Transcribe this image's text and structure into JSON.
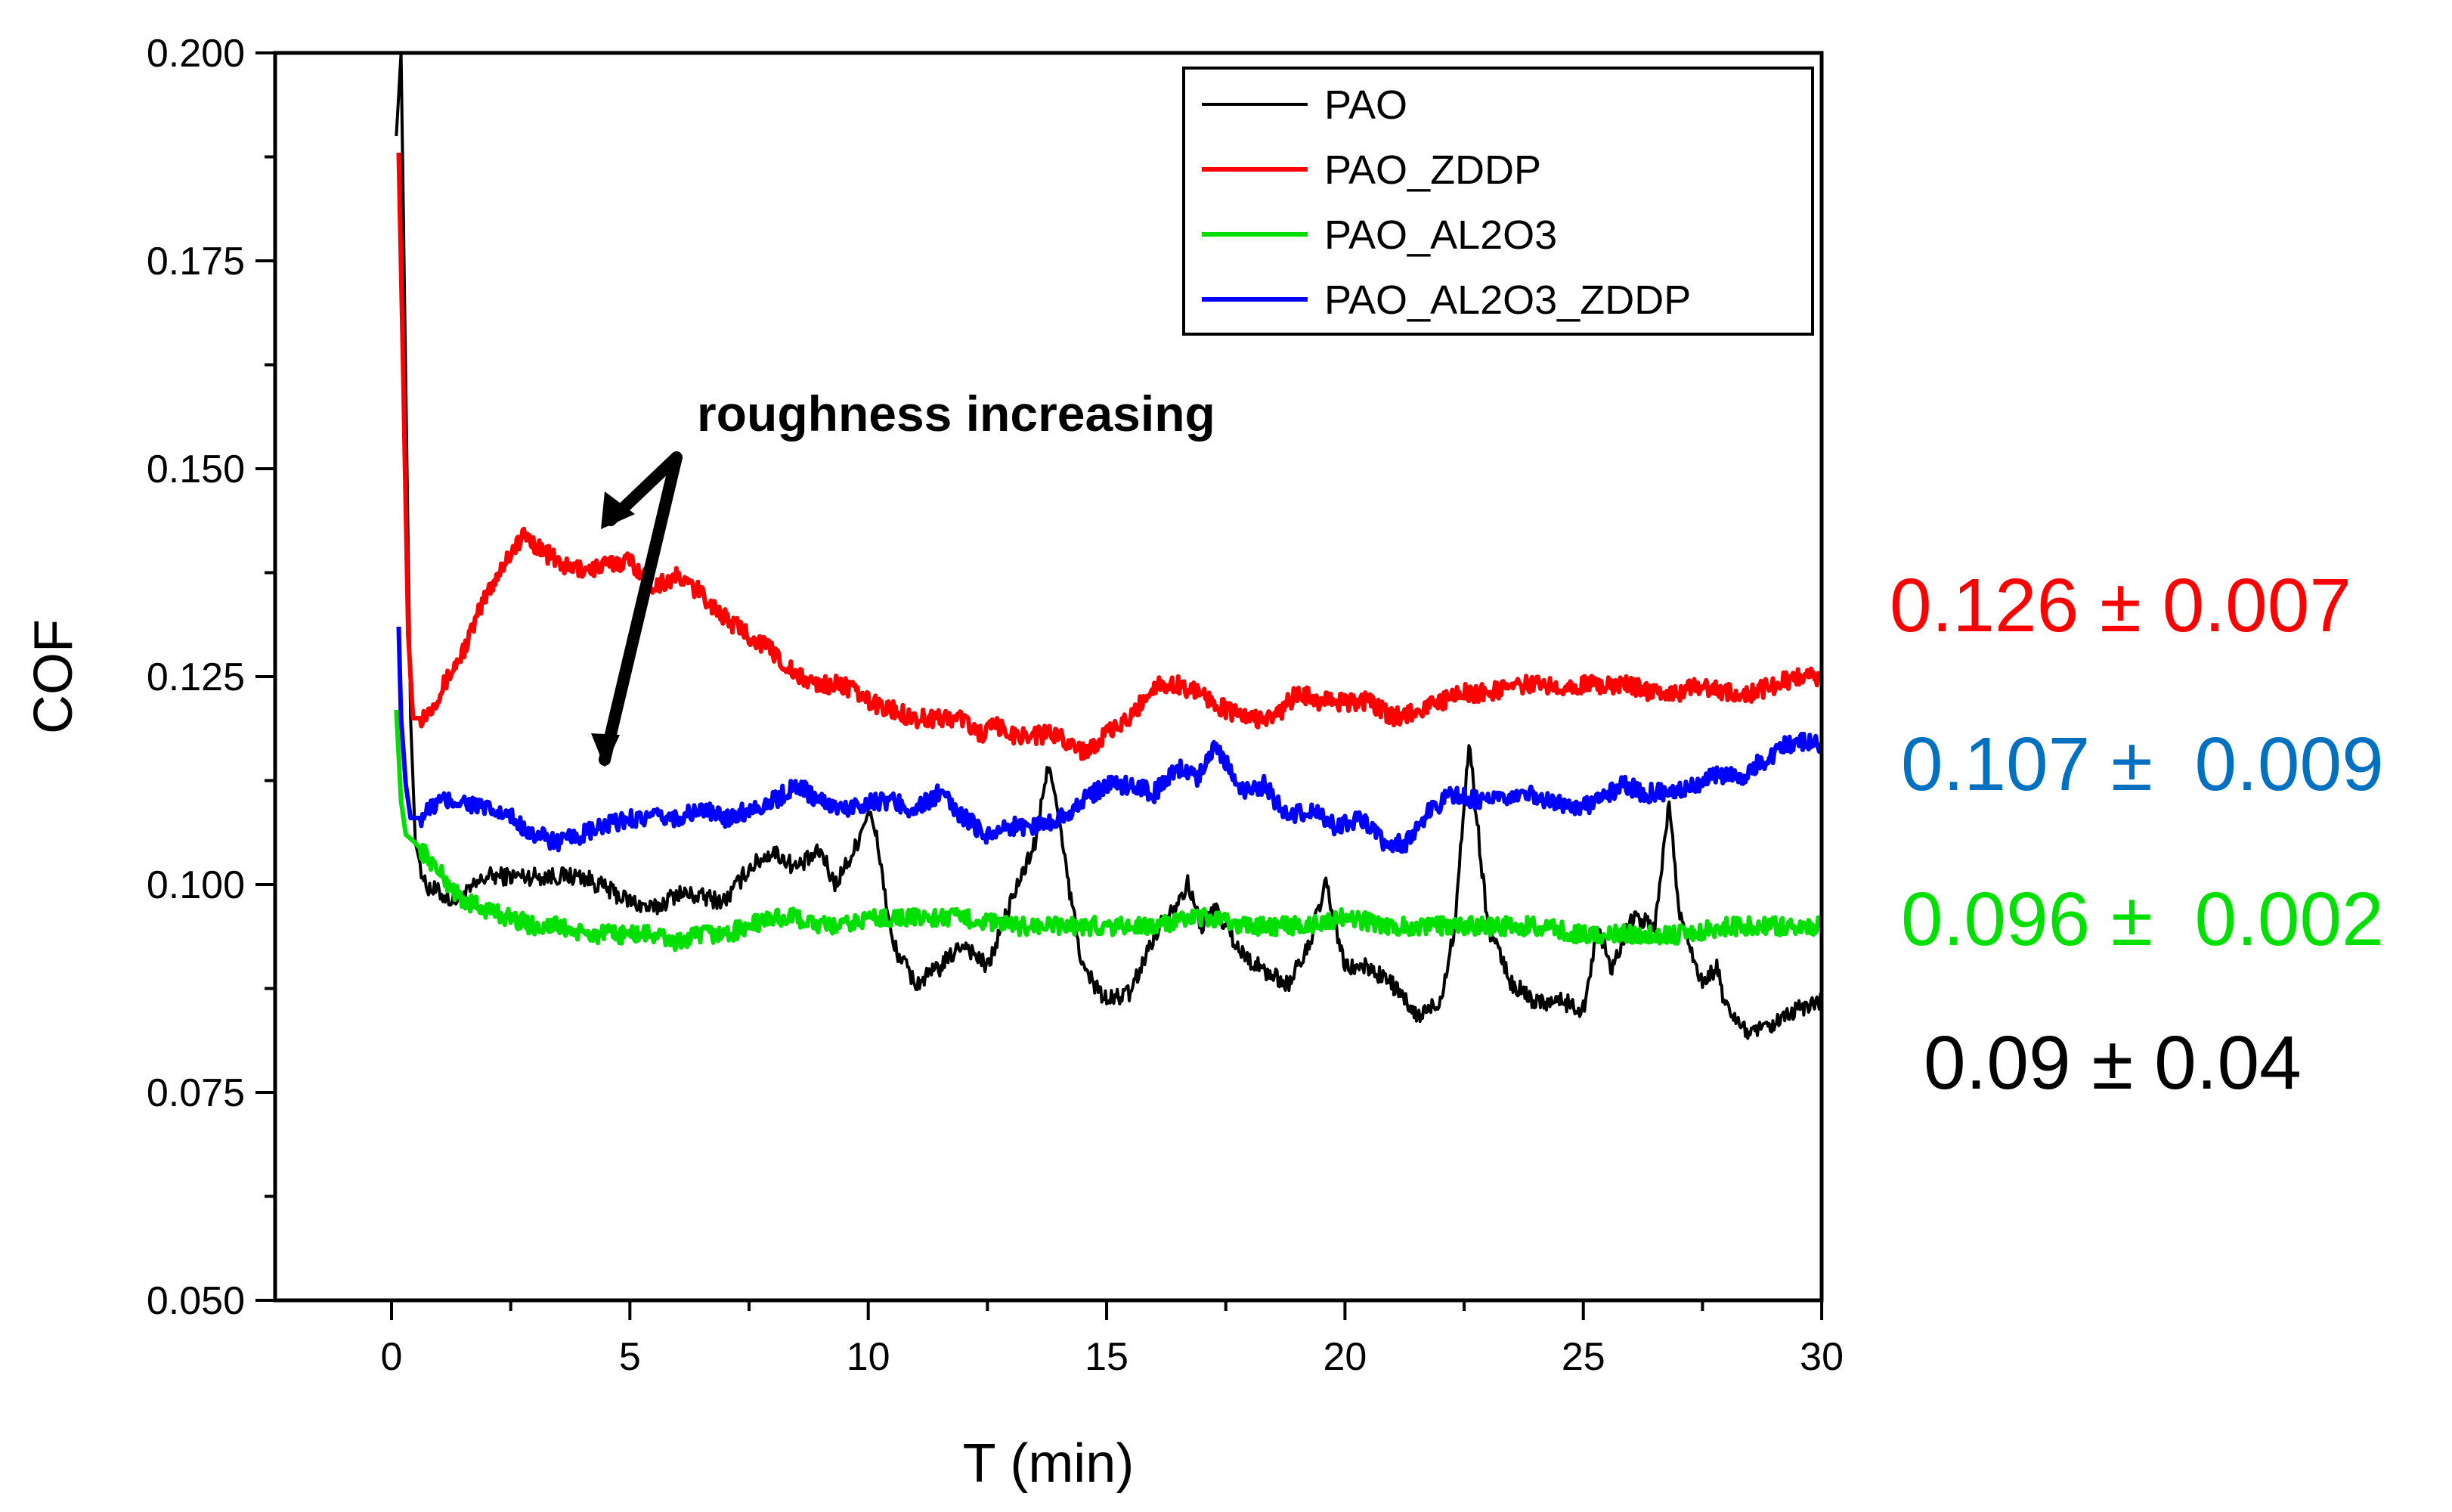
{
  "chart_data": {
    "type": "line",
    "title": "",
    "xlabel": "T (min)",
    "ylabel": "COF",
    "xlim": [
      -2.5,
      30
    ],
    "ylim": [
      0.05,
      0.2
    ],
    "x_ticks": [
      0,
      5,
      10,
      15,
      20,
      25,
      30
    ],
    "x_tick_labels": [
      "0",
      "5",
      "10",
      "15",
      "20",
      "25",
      "30"
    ],
    "y_ticks": [
      0.05,
      0.075,
      0.1,
      0.125,
      0.15,
      0.175,
      0.2
    ],
    "y_tick_labels": [
      "0.050",
      "0.075",
      "0.100",
      "0.125",
      "0.150",
      "0.175",
      "0.200"
    ],
    "legend_position": "top-right",
    "series": [
      {
        "name": "PAO",
        "color": "#000000",
        "x": [
          0.1,
          0.2,
          0.3,
          0.4,
          0.5,
          0.7,
          1,
          1.3,
          1.6,
          2,
          3,
          4,
          5,
          5.5,
          6,
          7,
          7.5,
          8,
          8.5,
          9,
          9.3,
          9.7,
          10,
          10.2,
          10.5,
          11,
          11.5,
          12,
          12.5,
          13,
          13.5,
          13.8,
          14.2,
          14.5,
          15,
          15.5,
          16,
          16.7,
          17,
          17.3,
          17.8,
          18.2,
          18.8,
          19.2,
          19.6,
          20,
          20.5,
          21,
          21.5,
          22,
          22.3,
          22.6,
          23,
          23.5,
          24,
          24.5,
          25,
          25.3,
          25.6,
          26,
          26.5,
          26.8,
          27,
          27.5,
          27.8,
          28,
          28.5,
          29,
          29.5,
          30
        ],
        "values": [
          0.19,
          0.2,
          0.16,
          0.12,
          0.105,
          0.1,
          0.099,
          0.098,
          0.099,
          0.101,
          0.101,
          0.101,
          0.098,
          0.097,
          0.099,
          0.098,
          0.102,
          0.104,
          0.102,
          0.104,
          0.1,
          0.104,
          0.109,
          0.105,
          0.093,
          0.088,
          0.09,
          0.093,
          0.09,
          0.098,
          0.105,
          0.115,
          0.1,
          0.09,
          0.086,
          0.087,
          0.094,
          0.1,
          0.095,
          0.097,
          0.092,
          0.09,
          0.088,
          0.092,
          0.1,
          0.09,
          0.09,
          0.088,
          0.084,
          0.086,
          0.095,
          0.117,
          0.095,
          0.088,
          0.086,
          0.086,
          0.085,
          0.095,
          0.09,
          0.096,
          0.095,
          0.11,
          0.097,
          0.088,
          0.09,
          0.085,
          0.082,
          0.083,
          0.085,
          0.086
        ]
      },
      {
        "name": "PAO_ZDDP",
        "color": "#ff0000",
        "x": [
          0.15,
          0.25,
          0.35,
          0.45,
          0.6,
          0.8,
          1,
          1.5,
          2,
          2.5,
          2.8,
          3.2,
          3.7,
          4.2,
          5,
          5.5,
          6,
          6.5,
          7,
          7.5,
          8,
          8.5,
          9,
          9.5,
          10,
          10.5,
          11,
          11.5,
          12,
          12.3,
          12.7,
          13,
          13.5,
          14,
          14.5,
          15,
          15.5,
          16,
          16.5,
          17,
          17.5,
          18,
          18.5,
          19,
          19.5,
          20,
          20.5,
          21,
          21.5,
          22,
          22.5,
          23,
          23.5,
          24,
          24.5,
          25,
          25.5,
          26,
          26.5,
          27,
          27.5,
          28,
          28.5,
          29,
          29.5,
          30
        ],
        "values": [
          0.188,
          0.16,
          0.13,
          0.12,
          0.12,
          0.121,
          0.123,
          0.128,
          0.135,
          0.14,
          0.142,
          0.14,
          0.138,
          0.138,
          0.139,
          0.136,
          0.137,
          0.135,
          0.132,
          0.13,
          0.128,
          0.125,
          0.124,
          0.124,
          0.122,
          0.121,
          0.12,
          0.12,
          0.12,
          0.118,
          0.119,
          0.118,
          0.118,
          0.118,
          0.116,
          0.118,
          0.12,
          0.124,
          0.124,
          0.123,
          0.121,
          0.12,
          0.12,
          0.123,
          0.122,
          0.122,
          0.122,
          0.12,
          0.121,
          0.122,
          0.123,
          0.123,
          0.124,
          0.124,
          0.124,
          0.124,
          0.124,
          0.124,
          0.123,
          0.123,
          0.124,
          0.123,
          0.123,
          0.124,
          0.125,
          0.125
        ]
      },
      {
        "name": "PAO_AL2O3",
        "color": "#00e000",
        "x": [
          0.1,
          0.2,
          0.3,
          0.5,
          0.8,
          1.2,
          1.5,
          2,
          2.5,
          3,
          3.5,
          4,
          4.5,
          5,
          5.5,
          6,
          6.5,
          7,
          7.5,
          8,
          8.5,
          9,
          9.5,
          10,
          11,
          12,
          13,
          14,
          15,
          16,
          17,
          18,
          19,
          20,
          21,
          22,
          23,
          24,
          25,
          26,
          27,
          28,
          29,
          30
        ],
        "values": [
          0.121,
          0.11,
          0.106,
          0.105,
          0.103,
          0.1,
          0.098,
          0.097,
          0.096,
          0.095,
          0.095,
          0.094,
          0.094,
          0.094,
          0.094,
          0.093,
          0.094,
          0.094,
          0.095,
          0.096,
          0.096,
          0.095,
          0.095,
          0.096,
          0.096,
          0.096,
          0.095,
          0.095,
          0.095,
          0.095,
          0.096,
          0.095,
          0.095,
          0.096,
          0.095,
          0.095,
          0.095,
          0.095,
          0.094,
          0.094,
          0.094,
          0.095,
          0.095,
          0.095
        ]
      },
      {
        "name": "PAO_AL2O3_ZDDP",
        "color": "#0000ff",
        "x": [
          0.15,
          0.2,
          0.3,
          0.4,
          0.6,
          1,
          1.5,
          2,
          2.5,
          3,
          3.5,
          4,
          4.5,
          5,
          5.5,
          6,
          6.5,
          7,
          7.5,
          8,
          8.5,
          9,
          9.5,
          10,
          10.5,
          11,
          11.5,
          12,
          12.5,
          13,
          13.5,
          14,
          14.5,
          15,
          15.5,
          16,
          16.5,
          16.9,
          17.3,
          17.8,
          18.3,
          18.8,
          19.3,
          19.8,
          20.3,
          20.8,
          21.3,
          21.8,
          22.3,
          22.8,
          23.3,
          23.8,
          24.3,
          24.8,
          25.3,
          25.8,
          26.3,
          26.8,
          27.3,
          27.8,
          28.3,
          28.8,
          29.3,
          29.6,
          30
        ],
        "values": [
          0.131,
          0.12,
          0.112,
          0.108,
          0.108,
          0.11,
          0.11,
          0.109,
          0.108,
          0.106,
          0.105,
          0.106,
          0.107,
          0.108,
          0.108,
          0.108,
          0.109,
          0.108,
          0.109,
          0.11,
          0.112,
          0.11,
          0.109,
          0.11,
          0.11,
          0.109,
          0.111,
          0.108,
          0.106,
          0.107,
          0.107,
          0.108,
          0.11,
          0.112,
          0.112,
          0.111,
          0.114,
          0.113,
          0.117,
          0.111,
          0.112,
          0.108,
          0.109,
          0.107,
          0.108,
          0.105,
          0.105,
          0.109,
          0.111,
          0.11,
          0.11,
          0.111,
          0.11,
          0.109,
          0.11,
          0.112,
          0.111,
          0.111,
          0.112,
          0.113,
          0.113,
          0.115,
          0.117,
          0.117,
          0.117
        ]
      }
    ],
    "annotations": [
      {
        "text": "roughness increasing"
      }
    ],
    "side_labels": [
      {
        "text": "0.126 ± 0.007",
        "color": "#ff0000"
      },
      {
        "text": "0.107 ±  0.009",
        "color": "#0070c0"
      },
      {
        "text": "0.096 ±  0.002",
        "color": "#00e000"
      },
      {
        "text": "0.09 ± 0.04",
        "color": "#000000"
      }
    ]
  }
}
